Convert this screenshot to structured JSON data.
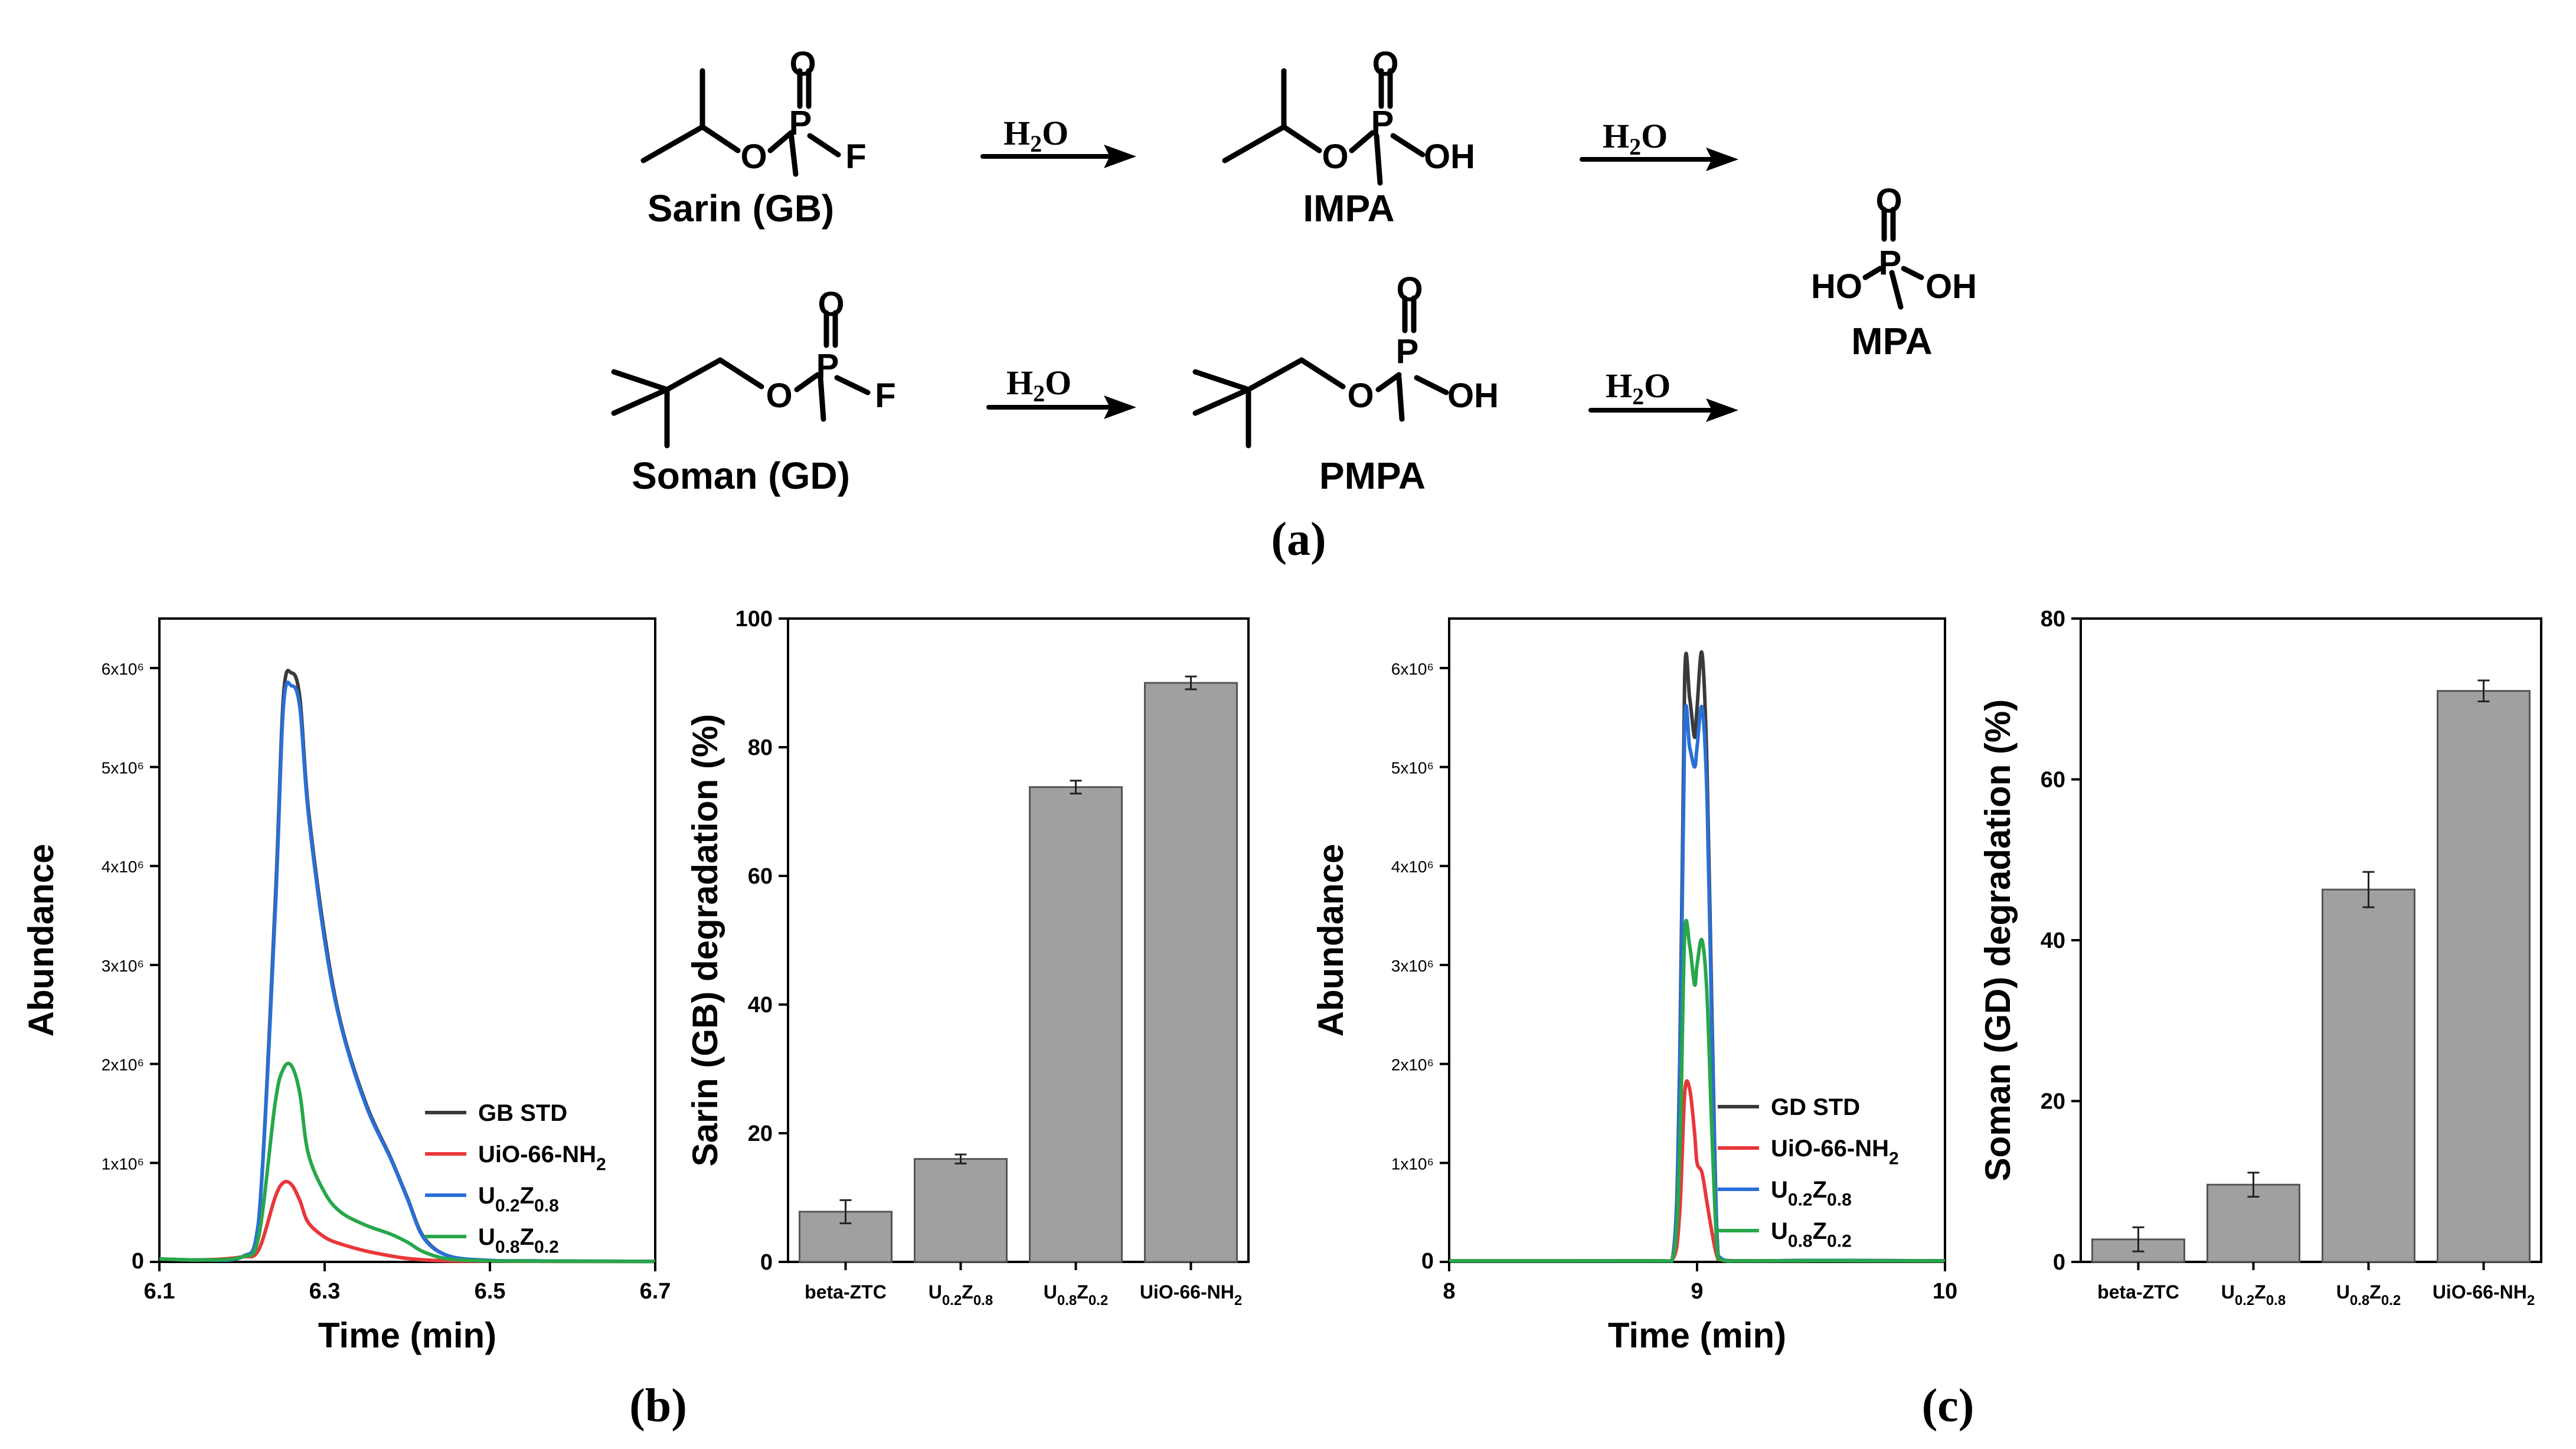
{
  "scheme": {
    "molecules": [
      {
        "id": "sarin",
        "name": "Sarin (GB)"
      },
      {
        "id": "impa",
        "name": "IMPA"
      },
      {
        "id": "mpa",
        "name": "MPA"
      },
      {
        "id": "soman",
        "name": "Soman (GD)"
      },
      {
        "id": "pmpa",
        "name": "PMPA"
      }
    ],
    "reagent": "H2O",
    "atoms": {
      "P": "P",
      "O": "O",
      "F": "F",
      "OH": "OH",
      "HO": "HO"
    },
    "panel_label": "(a)"
  },
  "panels": {
    "b": {
      "label": "(b)"
    },
    "c": {
      "label": "(c)"
    }
  },
  "colors": {
    "std": "#3a3a3a",
    "uio": "#e8373a",
    "u02z08": "#2a6fd6",
    "u08z02": "#27a74a",
    "bar": "#a0a0a0"
  },
  "chart_data": [
    {
      "id": "b-chrom",
      "type": "line",
      "xlabel": "Time (min)",
      "ylabel": "Abundance",
      "xlim": [
        6.1,
        6.7
      ],
      "ylim": [
        0,
        6500000
      ],
      "xticks": [
        "6.1",
        "6.3",
        "6.5",
        "6.7"
      ],
      "yticks": [
        "0",
        "1x10⁶",
        "2x10⁶",
        "3x10⁶",
        "4x10⁶",
        "5x10⁶",
        "6x10⁶"
      ],
      "legend_position": "bottom-right",
      "series": [
        {
          "name": "GB STD",
          "color_key": "std",
          "x": [
            6.1,
            6.15,
            6.2,
            6.22,
            6.24,
            6.25,
            6.26,
            6.27,
            6.28,
            6.3,
            6.32,
            6.35,
            6.38,
            6.4,
            6.42,
            6.45,
            6.5,
            6.55,
            6.6,
            6.7
          ],
          "y": [
            30000,
            20000,
            50000,
            400000,
            3600000,
            5700000,
            5950000,
            5700000,
            4600000,
            3300000,
            2400000,
            1600000,
            1050000,
            650000,
            250000,
            60000,
            15000,
            10000,
            8000,
            5000
          ]
        },
        {
          "name": "UiO-66-NH2",
          "color_key": "uio",
          "x": [
            6.1,
            6.15,
            6.2,
            6.22,
            6.24,
            6.25,
            6.26,
            6.27,
            6.28,
            6.3,
            6.32,
            6.35,
            6.38,
            6.4,
            6.42,
            6.45,
            6.5,
            6.55,
            6.6,
            6.7
          ],
          "y": [
            30000,
            20000,
            50000,
            120000,
            650000,
            800000,
            780000,
            620000,
            400000,
            250000,
            180000,
            110000,
            60000,
            35000,
            20000,
            10000,
            8000,
            6000,
            5000,
            4000
          ]
        },
        {
          "name": "U0.2Z0.8",
          "color_key": "u02z08",
          "x": [
            6.1,
            6.15,
            6.2,
            6.22,
            6.24,
            6.25,
            6.26,
            6.27,
            6.28,
            6.3,
            6.32,
            6.35,
            6.38,
            6.4,
            6.42,
            6.45,
            6.5,
            6.55,
            6.6,
            6.7
          ],
          "y": [
            30000,
            20000,
            50000,
            400000,
            3500000,
            5600000,
            5820000,
            5600000,
            4550000,
            3250000,
            2380000,
            1580000,
            1040000,
            640000,
            240000,
            60000,
            15000,
            10000,
            8000,
            5000
          ]
        },
        {
          "name": "U0.8Z0.2",
          "color_key": "u08z02",
          "x": [
            6.1,
            6.15,
            6.2,
            6.22,
            6.24,
            6.25,
            6.26,
            6.27,
            6.28,
            6.3,
            6.32,
            6.35,
            6.38,
            6.4,
            6.42,
            6.45,
            6.5,
            6.55,
            6.6,
            6.7
          ],
          "y": [
            30000,
            20000,
            50000,
            250000,
            1600000,
            1950000,
            1980000,
            1700000,
            1100000,
            700000,
            500000,
            370000,
            280000,
            200000,
            100000,
            30000,
            10000,
            8000,
            6000,
            4000
          ]
        }
      ]
    },
    {
      "id": "b-bar",
      "type": "bar",
      "ylabel": "Sarin (GB) degradation (%)",
      "ylim": [
        0,
        100
      ],
      "yticks": [
        "0",
        "20",
        "40",
        "60",
        "80",
        "100"
      ],
      "categories": [
        "beta-ZTC",
        "U0.2Z0.8",
        "U0.8Z0.2",
        "UiO-66-NH2"
      ],
      "values": [
        7.8,
        16.0,
        73.8,
        90.0
      ],
      "errors": [
        1.8,
        0.7,
        1.0,
        1.0
      ]
    },
    {
      "id": "c-chrom",
      "type": "line",
      "xlabel": "Time (min)",
      "ylabel": "Abundance",
      "xlim": [
        8,
        10
      ],
      "ylim": [
        0,
        6500000
      ],
      "xticks": [
        "8",
        "9",
        "10"
      ],
      "yticks": [
        "0",
        "1x10⁶",
        "2x10⁶",
        "3x10⁶",
        "4x10⁶",
        "5x10⁶",
        "6x10⁶"
      ],
      "legend_position": "bottom-right",
      "series": [
        {
          "name": "GD STD",
          "color_key": "std",
          "x": [
            8,
            8.8,
            8.9,
            8.93,
            8.95,
            8.97,
            8.99,
            9.0,
            9.02,
            9.04,
            9.06,
            9.08,
            9.1,
            9.2,
            9.5,
            10
          ],
          "y": [
            10000,
            10000,
            20000,
            2000000,
            5900000,
            5700000,
            5300000,
            5600000,
            6150000,
            5000000,
            2500000,
            300000,
            30000,
            10000,
            15000,
            10000
          ]
        },
        {
          "name": "UiO-66-NH2",
          "color_key": "uio",
          "x": [
            8,
            8.8,
            8.9,
            8.93,
            8.95,
            8.97,
            8.99,
            9.0,
            9.02,
            9.04,
            9.06,
            9.08,
            9.1,
            9.2,
            9.5,
            10
          ],
          "y": [
            10000,
            10000,
            20000,
            500000,
            1700000,
            1750000,
            1300000,
            1000000,
            900000,
            600000,
            300000,
            60000,
            20000,
            10000,
            12000,
            10000
          ]
        },
        {
          "name": "U0.2Z0.8",
          "color_key": "u02z08",
          "x": [
            8,
            8.8,
            8.9,
            8.93,
            8.95,
            8.97,
            8.99,
            9.0,
            9.02,
            9.04,
            9.06,
            9.08,
            9.1,
            9.2,
            9.5,
            10
          ],
          "y": [
            10000,
            10000,
            20000,
            1800000,
            5400000,
            5200000,
            5000000,
            5200000,
            5600000,
            4700000,
            2300000,
            280000,
            30000,
            10000,
            15000,
            10000
          ]
        },
        {
          "name": "U0.8Z0.2",
          "color_key": "u08z02",
          "x": [
            8,
            8.8,
            8.9,
            8.93,
            8.95,
            8.97,
            8.99,
            9.0,
            9.02,
            9.04,
            9.06,
            9.08,
            9.1,
            9.2,
            9.5,
            10
          ],
          "y": [
            10000,
            10000,
            20000,
            1100000,
            3300000,
            3200000,
            2800000,
            3000000,
            3250000,
            2700000,
            1300000,
            160000,
            20000,
            10000,
            12000,
            10000
          ]
        }
      ]
    },
    {
      "id": "c-bar",
      "type": "bar",
      "ylabel": "Soman (GD) degradation (%)",
      "ylim": [
        0,
        80
      ],
      "yticks": [
        "0",
        "20",
        "40",
        "60",
        "80"
      ],
      "categories": [
        "beta-ZTC",
        "U0.2Z0.8",
        "U0.8Z0.2",
        "UiO-66-NH2"
      ],
      "values": [
        2.8,
        9.6,
        46.3,
        71.0
      ],
      "errors": [
        1.5,
        1.5,
        2.2,
        1.3
      ]
    }
  ]
}
